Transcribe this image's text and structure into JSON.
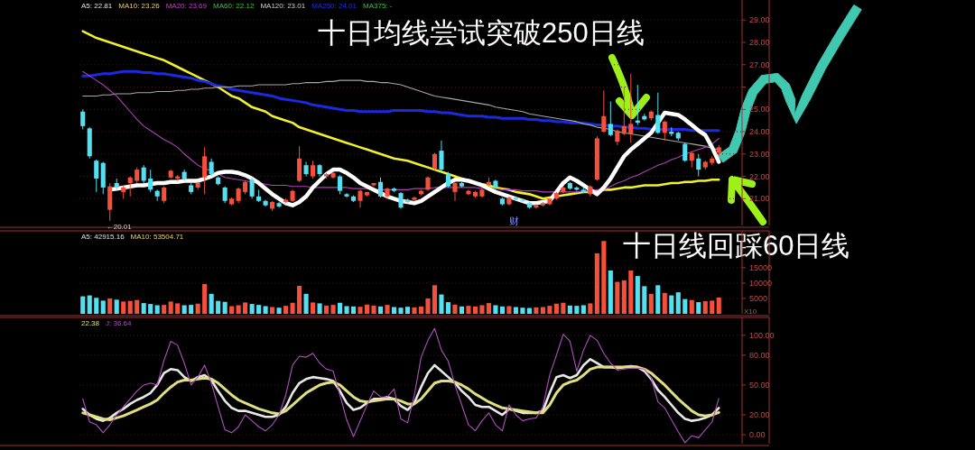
{
  "chart_data": [
    {
      "type": "candlestick",
      "title": "十日均线尝试突破250日线",
      "categories": [
        null,
        null,
        null,
        null,
        null,
        null,
        null,
        null,
        null,
        null,
        null,
        null,
        null,
        null,
        null,
        null,
        null,
        null,
        null,
        null,
        null,
        null,
        null,
        null,
        null,
        null,
        null,
        null,
        null,
        null,
        null,
        null,
        null,
        null,
        null,
        null,
        null,
        null,
        null,
        null,
        null,
        null,
        null,
        null,
        null,
        null,
        null,
        null,
        null,
        null,
        null,
        null,
        null,
        null,
        null,
        null,
        null,
        null,
        null,
        null,
        null,
        null,
        null,
        null,
        null,
        null,
        null,
        null,
        null,
        null,
        null,
        null,
        null,
        null,
        null,
        null,
        null,
        null,
        null,
        null,
        null,
        null,
        null,
        null,
        null,
        null,
        null,
        null,
        null,
        null,
        null,
        null,
        null,
        null,
        null
      ],
      "ohlc": [
        [
          24.9,
          25.0,
          24.1,
          24.25
        ],
        [
          24.15,
          24.2,
          22.8,
          22.9
        ],
        [
          22.7,
          22.75,
          21.3,
          21.9
        ],
        [
          22.6,
          22.65,
          21.2,
          21.5
        ],
        [
          20.5,
          21.7,
          20.01,
          21.55
        ],
        [
          21.7,
          21.9,
          21.4,
          21.5
        ],
        [
          21.3,
          21.6,
          21.0,
          21.5
        ],
        [
          21.7,
          22.0,
          21.1,
          21.95
        ],
        [
          21.8,
          22.4,
          21.7,
          22.3
        ],
        [
          22.4,
          22.5,
          21.7,
          21.8
        ],
        [
          21.9,
          22.3,
          21.3,
          21.4
        ],
        [
          21.35,
          21.4,
          20.9,
          21.1
        ],
        [
          20.9,
          21.55,
          20.8,
          21.5
        ],
        [
          21.95,
          22.3,
          21.9,
          22.25
        ],
        [
          21.9,
          22.05,
          21.8,
          22.0
        ],
        [
          22.2,
          22.3,
          21.8,
          21.9
        ],
        [
          21.6,
          21.7,
          21.2,
          21.3
        ],
        [
          21.5,
          21.75,
          21.4,
          21.7
        ],
        [
          21.95,
          23.3,
          21.2,
          22.9
        ],
        [
          22.65,
          22.8,
          22.0,
          22.1
        ],
        [
          21.95,
          22.0,
          21.6,
          21.65
        ],
        [
          21.5,
          21.55,
          20.8,
          20.9
        ],
        [
          20.75,
          21.05,
          20.7,
          21.0
        ],
        [
          20.9,
          21.5,
          20.8,
          21.45
        ],
        [
          21.3,
          21.8,
          21.2,
          21.75
        ],
        [
          21.85,
          21.95,
          21.0,
          21.1
        ],
        [
          21.1,
          21.4,
          20.85,
          20.9
        ],
        [
          20.9,
          20.95,
          20.65,
          20.7
        ],
        [
          20.55,
          20.9,
          20.45,
          20.85
        ],
        [
          20.8,
          20.85,
          20.6,
          20.65
        ],
        [
          20.85,
          21.0,
          20.8,
          20.95
        ],
        [
          20.9,
          21.4,
          20.85,
          21.35
        ],
        [
          21.8,
          23.35,
          21.75,
          22.8
        ],
        [
          22.5,
          22.65,
          22.0,
          22.1
        ],
        [
          22.0,
          22.7,
          21.9,
          22.5
        ],
        [
          22.5,
          22.55,
          22.0,
          22.1
        ],
        [
          22.0,
          22.15,
          21.9,
          22.1
        ],
        [
          21.95,
          22.2,
          21.9,
          22.15
        ],
        [
          22.0,
          22.05,
          21.2,
          21.35
        ],
        [
          21.2,
          21.25,
          21.05,
          21.1
        ],
        [
          21.1,
          21.15,
          20.85,
          20.9
        ],
        [
          20.9,
          21.4,
          20.6,
          21.35
        ],
        [
          21.15,
          21.3,
          21.1,
          21.3
        ],
        [
          21.6,
          21.7,
          21.55,
          21.7
        ],
        [
          21.75,
          21.95,
          21.05,
          21.1
        ],
        [
          21.1,
          21.5,
          21.0,
          21.45
        ],
        [
          21.45,
          21.5,
          21.3,
          21.35
        ],
        [
          21.25,
          21.3,
          20.55,
          20.6
        ],
        [
          20.95,
          21.0,
          20.8,
          20.85
        ],
        [
          20.95,
          21.1,
          20.9,
          21.05
        ],
        [
          21.2,
          21.4,
          21.15,
          21.35
        ],
        [
          21.4,
          22.0,
          21.35,
          21.95
        ],
        [
          22.35,
          23.05,
          22.3,
          23.0
        ],
        [
          23.15,
          23.6,
          22.2,
          22.3
        ],
        [
          22.1,
          22.2,
          21.5,
          21.55
        ],
        [
          21.3,
          21.75,
          20.9,
          21.7
        ],
        [
          21.7,
          21.75,
          21.5,
          21.55
        ],
        [
          21.2,
          21.4,
          21.15,
          21.35
        ],
        [
          21.1,
          21.35,
          21.05,
          21.3
        ],
        [
          21.1,
          21.45,
          21.05,
          21.4
        ],
        [
          21.6,
          21.95,
          21.55,
          21.75
        ],
        [
          21.8,
          21.85,
          21.45,
          21.5
        ],
        [
          21.0,
          21.05,
          20.7,
          20.75
        ],
        [
          20.75,
          21.1,
          20.7,
          21.05
        ],
        [
          21.05,
          21.1,
          20.9,
          20.95
        ],
        [
          20.95,
          21.0,
          20.85,
          20.9
        ],
        [
          20.8,
          20.85,
          20.55,
          20.6
        ],
        [
          20.6,
          20.75,
          20.55,
          20.7
        ],
        [
          20.7,
          20.85,
          20.65,
          20.8
        ],
        [
          20.75,
          21.0,
          20.7,
          21.0
        ],
        [
          21.0,
          21.3,
          20.95,
          21.25
        ],
        [
          21.3,
          21.55,
          21.25,
          21.5
        ],
        [
          21.7,
          21.75,
          21.4,
          21.45
        ],
        [
          21.5,
          21.55,
          21.35,
          21.4
        ],
        [
          21.4,
          21.5,
          21.25,
          21.3
        ],
        [
          21.2,
          21.6,
          21.1,
          21.55
        ],
        [
          21.85,
          23.8,
          21.8,
          23.7
        ],
        [
          24.0,
          25.85,
          23.95,
          24.7
        ],
        [
          24.35,
          25.35,
          23.8,
          23.85
        ],
        [
          23.55,
          24.1,
          23.4,
          24.05
        ],
        [
          23.9,
          26.0,
          23.85,
          24.25
        ],
        [
          23.9,
          26.6,
          23.5,
          24.35
        ],
        [
          24.5,
          26.1,
          24.3,
          24.4
        ],
        [
          24.7,
          24.8,
          24.5,
          24.55
        ],
        [
          24.6,
          24.95,
          24.5,
          24.9
        ],
        [
          24.75,
          25.75,
          23.9,
          23.95
        ],
        [
          23.95,
          24.5,
          23.6,
          24.45
        ],
        [
          24.0,
          24.2,
          23.8,
          23.9
        ],
        [
          23.95,
          24.0,
          23.6,
          23.7
        ],
        [
          23.45,
          23.5,
          22.65,
          22.7
        ],
        [
          22.7,
          23.1,
          22.4,
          23.05
        ],
        [
          22.8,
          23.0,
          22.0,
          22.3
        ],
        [
          22.4,
          22.7,
          22.3,
          22.65
        ],
        [
          22.6,
          22.9,
          22.5,
          22.8
        ],
        [
          23.05,
          23.4,
          22.9,
          23.3
        ]
      ],
      "colors": [
        "#54e0f0",
        "#54e0f0",
        "#54e0f0",
        "#54e0f0",
        "#f5503c",
        "#54e0f0",
        "#f5503c",
        "#f5503c",
        "#f5503c",
        "#54e0f0",
        "#54e0f0",
        "#54e0f0",
        "#f5503c",
        "#f5503c",
        "#f5503c",
        "#54e0f0",
        "#54e0f0",
        "#f5503c",
        "#f5503c",
        "#54e0f0",
        "#54e0f0",
        "#54e0f0",
        "#f5503c",
        "#f5503c",
        "#f5503c",
        "#54e0f0",
        "#54e0f0",
        "#54e0f0",
        "#f5503c",
        "#54e0f0",
        "#f5503c",
        "#f5503c",
        "#f5503c",
        "#54e0f0",
        "#f5503c",
        "#54e0f0",
        "#f5503c",
        "#f5503c",
        "#54e0f0",
        "#54e0f0",
        "#54e0f0",
        "#f5503c",
        "#f5503c",
        "#f5503c",
        "#54e0f0",
        "#f5503c",
        "#54e0f0",
        "#54e0f0",
        "#54e0f0",
        "#f5503c",
        "#f5503c",
        "#f5503c",
        "#f5503c",
        "#54e0f0",
        "#54e0f0",
        "#f5503c",
        "#54e0f0",
        "#f5503c",
        "#f5503c",
        "#f5503c",
        "#f5503c",
        "#54e0f0",
        "#54e0f0",
        "#f5503c",
        "#54e0f0",
        "#54e0f0",
        "#54e0f0",
        "#f5503c",
        "#f5503c",
        "#f5503c",
        "#f5503c",
        "#f5503c",
        "#54e0f0",
        "#54e0f0",
        "#54e0f0",
        "#f5503c",
        "#f5503c",
        "#f5503c",
        "#54e0f0",
        "#f5503c",
        "#f5503c",
        "#f5503c",
        "#54e0f0",
        "#54e0f0",
        "#f5503c",
        "#54e0f0",
        "#f5503c",
        "#54e0f0",
        "#54e0f0",
        "#54e0f0",
        "#f5503c",
        "#54e0f0",
        "#f5503c",
        "#f5503c",
        "#f5503c"
      ],
      "series": [
        {
          "type": "line",
          "color": "#f0f030",
          "values": [
            28.5,
            28.35,
            28.2,
            28.1,
            28.0,
            27.9,
            27.8,
            27.7,
            27.6,
            27.5,
            27.4,
            27.3,
            27.2,
            27.05,
            26.9,
            26.75,
            26.6,
            26.45,
            26.3,
            26.15,
            26.0,
            25.8,
            25.6,
            25.5,
            25.3,
            25.1,
            25.0,
            24.9,
            24.7,
            24.6,
            24.5,
            24.4,
            24.2,
            24.1,
            24.0,
            23.9,
            23.8,
            23.7,
            23.6,
            23.5,
            23.4,
            23.3,
            23.2,
            23.1,
            23.0,
            22.9,
            22.8,
            22.75,
            22.7,
            22.6,
            22.5,
            22.4,
            22.3,
            22.2,
            22.1,
            22.0,
            21.9,
            21.8,
            21.7,
            21.65,
            21.6,
            21.5,
            21.45,
            21.4,
            21.3,
            21.25,
            21.2,
            21.1,
            21.0,
            21.05,
            21.1,
            21.15,
            21.2,
            21.25,
            21.3,
            21.3,
            21.35,
            21.4,
            21.4,
            21.45,
            21.5,
            21.5,
            21.55,
            21.6,
            21.6,
            21.6,
            21.65,
            21.7,
            21.7,
            21.75,
            21.75,
            21.8,
            21.8,
            21.85,
            21.85
          ]
        },
        {
          "type": "line",
          "color": "#1a2ae0",
          "values": [
            26.5,
            26.5,
            26.55,
            26.6,
            26.6,
            26.65,
            26.7,
            26.7,
            26.7,
            26.65,
            26.65,
            26.6,
            26.6,
            26.55,
            26.5,
            26.45,
            26.4,
            26.3,
            26.25,
            26.15,
            26.05,
            26.0,
            25.9,
            25.85,
            25.8,
            25.75,
            25.7,
            25.65,
            25.6,
            25.5,
            25.45,
            25.4,
            25.35,
            25.3,
            25.2,
            25.15,
            25.1,
            25.05,
            25.0,
            24.95,
            24.95,
            24.9,
            24.9,
            24.9,
            24.9,
            24.9,
            24.95,
            24.95,
            24.95,
            24.95,
            24.95,
            24.9,
            24.9,
            24.85,
            24.85,
            24.8,
            24.75,
            24.7,
            24.7,
            24.7,
            24.65,
            24.65,
            24.6,
            24.6,
            24.6,
            24.6,
            24.55,
            24.55,
            24.5,
            24.5,
            24.45,
            24.45,
            24.4,
            24.4,
            24.4,
            24.35,
            24.3,
            24.3,
            24.25,
            24.25,
            24.2,
            24.2,
            24.15,
            24.15,
            24.1,
            24.1,
            24.1,
            24.1,
            24.1,
            24.1,
            24.05,
            24.05,
            24.05,
            24.05,
            24.05
          ]
        },
        {
          "type": "line",
          "color": "#a8a8a8",
          "values": [
            25.6,
            25.6,
            25.6,
            25.65,
            25.65,
            25.7,
            25.7,
            25.7,
            25.75,
            25.75,
            25.75,
            25.8,
            25.8,
            25.8,
            25.85,
            25.85,
            25.9,
            25.9,
            25.95,
            25.95,
            26.0,
            26.0,
            26.0,
            26.05,
            26.05,
            26.05,
            26.1,
            26.1,
            26.1,
            26.1,
            26.1,
            26.15,
            26.15,
            26.2,
            26.2,
            26.2,
            26.25,
            26.25,
            26.3,
            26.3,
            26.3,
            26.3,
            26.25,
            26.25,
            26.2,
            26.2,
            26.15,
            26.1,
            26.0,
            25.9,
            25.8,
            25.7,
            25.6,
            25.55,
            25.5,
            25.45,
            25.4,
            25.35,
            25.3,
            25.25,
            25.2,
            25.1,
            25.05,
            25.0,
            24.95,
            24.9,
            24.8,
            24.75,
            24.7,
            24.65,
            24.6,
            24.55,
            24.5,
            24.45,
            24.35,
            24.3,
            24.2,
            24.15,
            24.1,
            24.0,
            23.95,
            23.9,
            23.85,
            23.8,
            23.75,
            23.7,
            23.65,
            23.6,
            23.55,
            23.5,
            23.45,
            23.4,
            23.35,
            23.25,
            23.2
          ]
        },
        {
          "type": "line",
          "color": "#b040b8",
          "values": [
            26.7,
            26.5,
            26.3,
            26.1,
            25.85,
            25.6,
            25.25,
            24.9,
            24.55,
            24.25,
            24.05,
            23.85,
            23.65,
            23.5,
            23.3,
            23.0,
            22.75,
            22.5,
            22.35,
            22.25,
            22.1,
            21.95,
            21.9,
            21.85,
            21.8,
            21.75,
            21.7,
            21.65,
            21.6,
            21.6,
            21.6,
            21.55,
            21.55,
            21.55,
            21.5,
            21.5,
            21.5,
            21.5,
            21.5,
            21.5,
            21.45,
            21.45,
            21.45,
            21.4,
            21.4,
            21.4,
            21.4,
            21.4,
            21.4,
            21.45,
            21.45,
            21.45,
            21.5,
            21.5,
            21.5,
            21.5,
            21.5,
            21.5,
            21.5,
            21.45,
            null,
            21.45,
            21.4,
            21.4,
            21.4,
            21.35,
            21.35,
            21.35,
            21.3,
            21.3,
            21.3,
            21.3,
            21.3,
            21.3,
            21.35,
            21.35,
            21.4,
            21.4,
            21.55,
            21.7,
            21.8,
            21.95,
            22.05,
            22.2,
            22.35,
            22.5,
            22.6,
            22.75,
            22.85,
            23.0,
            23.1,
            23.2,
            23.3,
            23.45,
            23.7
          ]
        },
        {
          "type": "line",
          "color": "#ffffff",
          "values": [
            null,
            null,
            null,
            null,
            21.4,
            21.45,
            21.5,
            21.55,
            21.6,
            21.6,
            21.65,
            21.7,
            21.7,
            21.75,
            21.75,
            21.8,
            21.8,
            21.8,
            21.9,
            22.0,
            22.15,
            22.2,
            22.2,
            22.15,
            22.05,
            21.9,
            21.7,
            21.45,
            21.2,
            21.0,
            20.8,
            20.7,
            20.85,
            21.1,
            21.5,
            21.8,
            22.1,
            22.3,
            22.3,
            22.15,
            21.95,
            21.7,
            21.55,
            21.4,
            21.25,
            21.1,
            21.0,
            20.9,
            20.85,
            20.8,
            20.9,
            21.1,
            21.3,
            21.5,
            21.7,
            21.85,
            21.85,
            21.8,
            21.7,
            21.6,
            21.45,
            21.3,
            21.2,
            21.1,
            21.0,
            20.9,
            20.8,
            20.8,
            20.85,
            20.9,
            21.3,
            21.7,
            21.95,
            21.8,
            21.6,
            21.4,
            21.2,
            21.5,
            21.9,
            22.4,
            22.9,
            23.2,
            23.45,
            23.7,
            23.95,
            24.4,
            24.85,
            24.8,
            24.75,
            24.55,
            24.3,
            24.05,
            23.85,
            23.3,
            22.65
          ]
        }
      ],
      "ylim": [
        19.8,
        29.9
      ],
      "yticks": [
        {
          "value": 21,
          "label": "21.00"
        },
        {
          "value": 22,
          "label": "22.00"
        },
        {
          "value": 23,
          "label": "23.00"
        },
        {
          "value": 24,
          "label": "24.00"
        },
        {
          "value": 25,
          "label": "25.00"
        },
        {
          "value": 26,
          "label": null
        },
        {
          "value": 27,
          "label": "27.00"
        },
        {
          "value": 28,
          "label": "28.00"
        },
        {
          "value": 29,
          "label": "29.00"
        }
      ],
      "grid": "y",
      "annotations": [
        "A5: 22.81",
        "MA10: 23.26",
        "MA20: 23.69",
        "MA60: 22.12",
        "MA120: 23.01",
        "MA250: 24.01",
        "MA375: -",
        "十日线回踩60日线",
        "←20.01",
        "财"
      ]
    },
    {
      "type": "bar",
      "categories": [
        null,
        null,
        null,
        null,
        null,
        null,
        null,
        null,
        null,
        null,
        null,
        null,
        null,
        null,
        null,
        null,
        null,
        null,
        null,
        null,
        null,
        null,
        null,
        null,
        null,
        null,
        null,
        null,
        null,
        null,
        null,
        null,
        null,
        null,
        null,
        null,
        null,
        null,
        null,
        null,
        null,
        null,
        null,
        null,
        null,
        null,
        null,
        null,
        null,
        null,
        null,
        null,
        null,
        null,
        null,
        null,
        null,
        null,
        null,
        null,
        null,
        null,
        null,
        null,
        null,
        null,
        null,
        null,
        null,
        null,
        null,
        null,
        null,
        null,
        null,
        null,
        null,
        null,
        null,
        null,
        null,
        null,
        null,
        null,
        null,
        null,
        null,
        null,
        null,
        null,
        null,
        null,
        null,
        null,
        null
      ],
      "values": [
        5700,
        6000,
        5200,
        4300,
        5000,
        4600,
        4000,
        4200,
        4500,
        3500,
        3200,
        2800,
        2900,
        4000,
        3400,
        2800,
        2900,
        3300,
        9700,
        6500,
        4200,
        3900,
        2500,
        2800,
        3700,
        3200,
        2900,
        2500,
        2200,
        2000,
        2600,
        3600,
        9100,
        6500,
        3700,
        3400,
        2700,
        2900,
        3600,
        2500,
        2400,
        2300,
        3000,
        2700,
        2400,
        2900,
        2200,
        2000,
        2300,
        2100,
        2400,
        5000,
        9300,
        6300,
        3800,
        3000,
        2400,
        2600,
        2400,
        2800,
        3500,
        2800,
        2400,
        2500,
        2200,
        2000,
        1900,
        2100,
        2200,
        2600,
        3300,
        3600,
        2700,
        2600,
        2800,
        3400,
        19700,
        23700,
        14100,
        10400,
        10900,
        14100,
        12300,
        9000,
        6500,
        9300,
        6800,
        6000,
        7000,
        4800,
        4500,
        3800,
        4100,
        4300,
        5300
      ],
      "colors": [
        "#54e0f0",
        "#54e0f0",
        "#54e0f0",
        "#54e0f0",
        "#f5503c",
        "#54e0f0",
        "#f5503c",
        "#f5503c",
        "#f5503c",
        "#54e0f0",
        "#54e0f0",
        "#54e0f0",
        "#f5503c",
        "#f5503c",
        "#f5503c",
        "#54e0f0",
        "#54e0f0",
        "#f5503c",
        "#f5503c",
        "#54e0f0",
        "#54e0f0",
        "#54e0f0",
        "#f5503c",
        "#f5503c",
        "#f5503c",
        "#54e0f0",
        "#54e0f0",
        "#54e0f0",
        "#f5503c",
        "#54e0f0",
        "#f5503c",
        "#f5503c",
        "#f5503c",
        "#54e0f0",
        "#f5503c",
        "#54e0f0",
        "#f5503c",
        "#f5503c",
        "#54e0f0",
        "#54e0f0",
        "#54e0f0",
        "#f5503c",
        "#f5503c",
        "#f5503c",
        "#54e0f0",
        "#f5503c",
        "#54e0f0",
        "#54e0f0",
        "#54e0f0",
        "#f5503c",
        "#f5503c",
        "#f5503c",
        "#f5503c",
        "#54e0f0",
        "#54e0f0",
        "#f5503c",
        "#54e0f0",
        "#f5503c",
        "#f5503c",
        "#f5503c",
        "#f5503c",
        "#54e0f0",
        "#54e0f0",
        "#f5503c",
        "#54e0f0",
        "#54e0f0",
        "#54e0f0",
        "#f5503c",
        "#f5503c",
        "#f5503c",
        "#f5503c",
        "#f5503c",
        "#54e0f0",
        "#54e0f0",
        "#54e0f0",
        "#f5503c",
        "#f5503c",
        "#f5503c",
        "#54e0f0",
        "#f5503c",
        "#f5503c",
        "#f5503c",
        "#54e0f0",
        "#54e0f0",
        "#f5503c",
        "#54e0f0",
        "#f5503c",
        "#54e0f0",
        "#54e0f0",
        "#54e0f0",
        "#f5503c",
        "#54e0f0",
        "#f5503c",
        "#f5503c",
        "#f5503c"
      ],
      "ylim": [
        0,
        27000
      ],
      "yticks": [
        5000,
        10000,
        15000
      ],
      "grid": "y",
      "annotations": [
        "A5: 42915.16",
        "MA10: 53504.71",
        "X10"
      ]
    },
    {
      "type": "line",
      "categories": [
        null,
        null,
        null,
        null,
        null,
        null,
        null,
        null,
        null,
        null,
        null,
        null,
        null,
        null,
        null,
        null,
        null,
        null,
        null,
        null,
        null,
        null,
        null,
        null,
        null,
        null,
        null,
        null,
        null,
        null,
        null,
        null,
        null,
        null,
        null,
        null,
        null,
        null,
        null,
        null,
        null,
        null,
        null,
        null,
        null,
        null,
        null,
        null,
        null,
        null,
        null,
        null,
        null,
        null,
        null,
        null,
        null,
        null,
        null,
        null,
        null,
        null,
        null,
        null,
        null,
        null,
        null,
        null,
        null,
        null,
        null,
        null,
        null,
        null,
        null,
        null,
        null,
        null,
        null,
        null,
        null,
        null,
        null,
        null,
        null,
        null,
        null,
        null,
        null,
        null,
        null,
        null,
        null,
        null,
        null
      ],
      "series": [
        {
          "color": "#e8e8e8",
          "values": [
            26,
            20,
            16,
            14,
            17,
            22,
            26,
            31,
            35,
            38,
            42,
            50,
            62,
            66,
            65,
            58,
            54,
            58,
            60,
            55,
            44,
            34,
            27,
            24,
            24,
            22,
            20,
            18,
            18,
            20,
            28,
            42,
            52,
            56,
            58,
            57,
            56,
            54,
            44,
            32,
            25,
            27,
            32,
            36,
            36,
            38,
            36,
            29,
            25,
            32,
            48,
            62,
            70,
            64,
            58,
            52,
            44,
            38,
            30,
            28,
            28,
            24,
            20,
            26,
            24,
            22,
            22,
            22,
            24,
            42,
            58,
            60,
            57,
            60,
            70,
            76,
            72,
            68,
            68,
            67,
            68,
            69,
            68,
            64,
            56,
            45,
            38,
            30,
            22,
            16,
            14,
            15,
            17,
            20,
            27
          ]
        },
        {
          "color": "#e0e080",
          "values": [
            22,
            20,
            18,
            16,
            15,
            17,
            19,
            22,
            25,
            28,
            31,
            35,
            42,
            48,
            53,
            55,
            55,
            56,
            57,
            56,
            52,
            46,
            40,
            35,
            32,
            29,
            26,
            24,
            22,
            21,
            24,
            30,
            36,
            42,
            46,
            50,
            52,
            53,
            50,
            44,
            38,
            34,
            33,
            34,
            35,
            36,
            36,
            34,
            31,
            31,
            36,
            44,
            52,
            54,
            54,
            53,
            50,
            46,
            41,
            37,
            33,
            30,
            27,
            26,
            25,
            24,
            23,
            22,
            22,
            30,
            42,
            50,
            53,
            55,
            60,
            66,
            68,
            68,
            68,
            68,
            68,
            68,
            68,
            66,
            62,
            56,
            50,
            43,
            36,
            30,
            24,
            20,
            19,
            20,
            22.38
          ]
        },
        {
          "color": "#b050c0",
          "values": [
            36,
            13,
            10,
            2,
            10,
            20,
            28,
            36,
            44,
            50,
            52,
            50,
            75,
            94,
            90,
            72,
            50,
            58,
            70,
            52,
            28,
            5,
            2,
            8,
            20,
            14,
            8,
            4,
            10,
            20,
            40,
            70,
            79,
            78,
            82,
            72,
            66,
            64,
            40,
            15,
            -2,
            14,
            30,
            44,
            38,
            38,
            46,
            16,
            12,
            40,
            78,
            95,
            107,
            85,
            74,
            50,
            30,
            10,
            4,
            14,
            22,
            10,
            4,
            30,
            20,
            14,
            16,
            17,
            28,
            60,
            80,
            101,
            94,
            64,
            85,
            100,
            95,
            82,
            72,
            65,
            66,
            67,
            67,
            66,
            57,
            33,
            27,
            15,
            3,
            -8,
            -1,
            -3,
            5,
            13,
            36.64
          ]
        }
      ],
      "ylim": [
        -9,
        118
      ],
      "yticks": [
        {
          "value": 0,
          "label": "0.00"
        },
        {
          "value": 20,
          "label": "20.00"
        },
        {
          "value": 50,
          "label": "50.00"
        },
        {
          "value": 80,
          "label": "80.00"
        },
        {
          "value": 100,
          "label": "100.00"
        }
      ],
      "grid": "y",
      "annotations": [
        "22.38",
        "J: 36.64"
      ]
    }
  ]
}
